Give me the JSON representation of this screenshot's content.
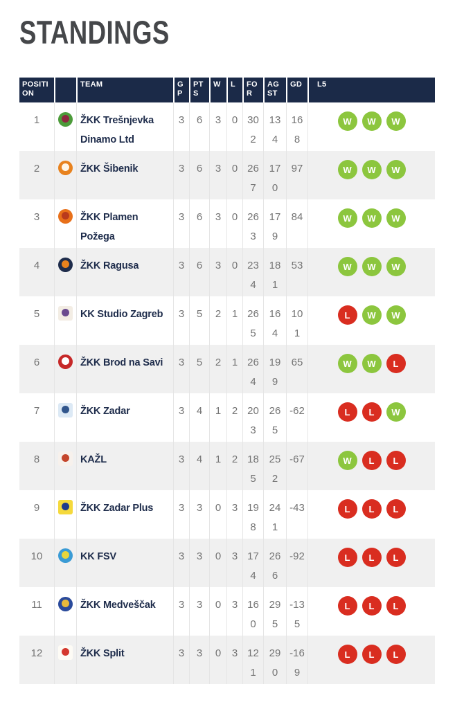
{
  "page": {
    "title": "STANDINGS"
  },
  "colors": {
    "header_bg": "#1B2A48",
    "title": "#45474A",
    "team_text": "#1E2C4B",
    "number_text": "#747474",
    "row_alt": "#F0F0F0",
    "divider": "#E5E5E5",
    "win": "#8CC63E",
    "loss": "#D92D20",
    "badge_text": "#FFFFFF"
  },
  "table": {
    "headers": [
      {
        "key": "position",
        "label": "POSITI\nON"
      },
      {
        "key": "logo",
        "label": ""
      },
      {
        "key": "team",
        "label": "TEAM"
      },
      {
        "key": "gp",
        "label": "G\nP"
      },
      {
        "key": "pts",
        "label": "PT\nS"
      },
      {
        "key": "w",
        "label": "W"
      },
      {
        "key": "l",
        "label": "L"
      },
      {
        "key": "for",
        "label": "FO\nR"
      },
      {
        "key": "agst",
        "label": "AG\nST"
      },
      {
        "key": "gd",
        "label": "GD"
      },
      {
        "key": "l5",
        "label": "L5"
      }
    ],
    "rows": [
      {
        "position": "1",
        "team": "ŽKK Trešnjevka Dinamo Ltd",
        "gp": "3",
        "pts": "6",
        "w": "3",
        "l": "0",
        "for": "302",
        "agst": "134",
        "gd": "168",
        "l5": [
          "W",
          "W",
          "W"
        ],
        "logo": {
          "shape": "circle",
          "base": "#4C9B3A",
          "accent": "#8D2740"
        }
      },
      {
        "position": "2",
        "team": "ŽKK Šibenik",
        "gp": "3",
        "pts": "6",
        "w": "3",
        "l": "0",
        "for": "267",
        "agst": "170",
        "gd": "97",
        "l5": [
          "W",
          "W",
          "W"
        ],
        "logo": {
          "shape": "circle",
          "base": "#E8821E",
          "accent": "#FFF6E8"
        }
      },
      {
        "position": "3",
        "team": "ŽKK Plamen Požega",
        "gp": "3",
        "pts": "6",
        "w": "3",
        "l": "0",
        "for": "263",
        "agst": "179",
        "gd": "84",
        "l5": [
          "W",
          "W",
          "W"
        ],
        "logo": {
          "shape": "circle",
          "base": "#E8701A",
          "accent": "#B93A1D"
        }
      },
      {
        "position": "4",
        "team": "ŽKK Ragusa",
        "gp": "3",
        "pts": "6",
        "w": "3",
        "l": "0",
        "for": "234",
        "agst": "181",
        "gd": "53",
        "l5": [
          "W",
          "W",
          "W"
        ],
        "logo": {
          "shape": "circle",
          "base": "#1E2C4B",
          "accent": "#E8821E"
        }
      },
      {
        "position": "5",
        "team": "KK Studio Zagreb",
        "gp": "3",
        "pts": "5",
        "w": "2",
        "l": "1",
        "for": "265",
        "agst": "164",
        "gd": "101",
        "l5": [
          "L",
          "W",
          "W"
        ],
        "logo": {
          "shape": "square",
          "base": "#F3EDE4",
          "accent": "#6B4A8E"
        }
      },
      {
        "position": "6",
        "team": "ŽKK Brod na Savi",
        "gp": "3",
        "pts": "5",
        "w": "2",
        "l": "1",
        "for": "264",
        "agst": "199",
        "gd": "65",
        "l5": [
          "W",
          "W",
          "L"
        ],
        "logo": {
          "shape": "circle",
          "base": "#C62828",
          "accent": "#FFFFFF"
        }
      },
      {
        "position": "7",
        "team": "ŽKK Zadar",
        "gp": "3",
        "pts": "4",
        "w": "1",
        "l": "2",
        "for": "203",
        "agst": "265",
        "gd": "-62",
        "l5": [
          "L",
          "L",
          "W"
        ],
        "logo": {
          "shape": "square",
          "base": "#DCE9F5",
          "accent": "#30558C"
        }
      },
      {
        "position": "8",
        "team": "KAŽL",
        "gp": "3",
        "pts": "4",
        "w": "1",
        "l": "2",
        "for": "185",
        "agst": "252",
        "gd": "-67",
        "l5": [
          "W",
          "L",
          "L"
        ],
        "logo": {
          "shape": "square",
          "base": "#F7F1EC",
          "accent": "#C4452B"
        }
      },
      {
        "position": "9",
        "team": "ŽKK Zadar Plus",
        "gp": "3",
        "pts": "3",
        "w": "0",
        "l": "3",
        "for": "198",
        "agst": "241",
        "gd": "-43",
        "l5": [
          "L",
          "L",
          "L"
        ],
        "logo": {
          "shape": "square",
          "base": "#F5D93C",
          "accent": "#1E3A8C"
        }
      },
      {
        "position": "10",
        "team": "KK FSV",
        "gp": "3",
        "pts": "3",
        "w": "0",
        "l": "3",
        "for": "174",
        "agst": "266",
        "gd": "-92",
        "l5": [
          "L",
          "L",
          "L"
        ],
        "logo": {
          "shape": "circle",
          "base": "#3A9BD5",
          "accent": "#E8D53C"
        }
      },
      {
        "position": "11",
        "team": "ŽKK Medveščak",
        "gp": "3",
        "pts": "3",
        "w": "0",
        "l": "3",
        "for": "160",
        "agst": "295",
        "gd": "-135",
        "l5": [
          "L",
          "L",
          "L"
        ],
        "logo": {
          "shape": "circle",
          "base": "#2A4A9B",
          "accent": "#E8B93C"
        }
      },
      {
        "position": "12",
        "team": "ŽKK Split",
        "gp": "3",
        "pts": "3",
        "w": "0",
        "l": "3",
        "for": "121",
        "agst": "290",
        "gd": "-169",
        "l5": [
          "L",
          "L",
          "L"
        ],
        "logo": {
          "shape": "square",
          "base": "#FDFBF5",
          "accent": "#D4382E"
        }
      }
    ]
  }
}
